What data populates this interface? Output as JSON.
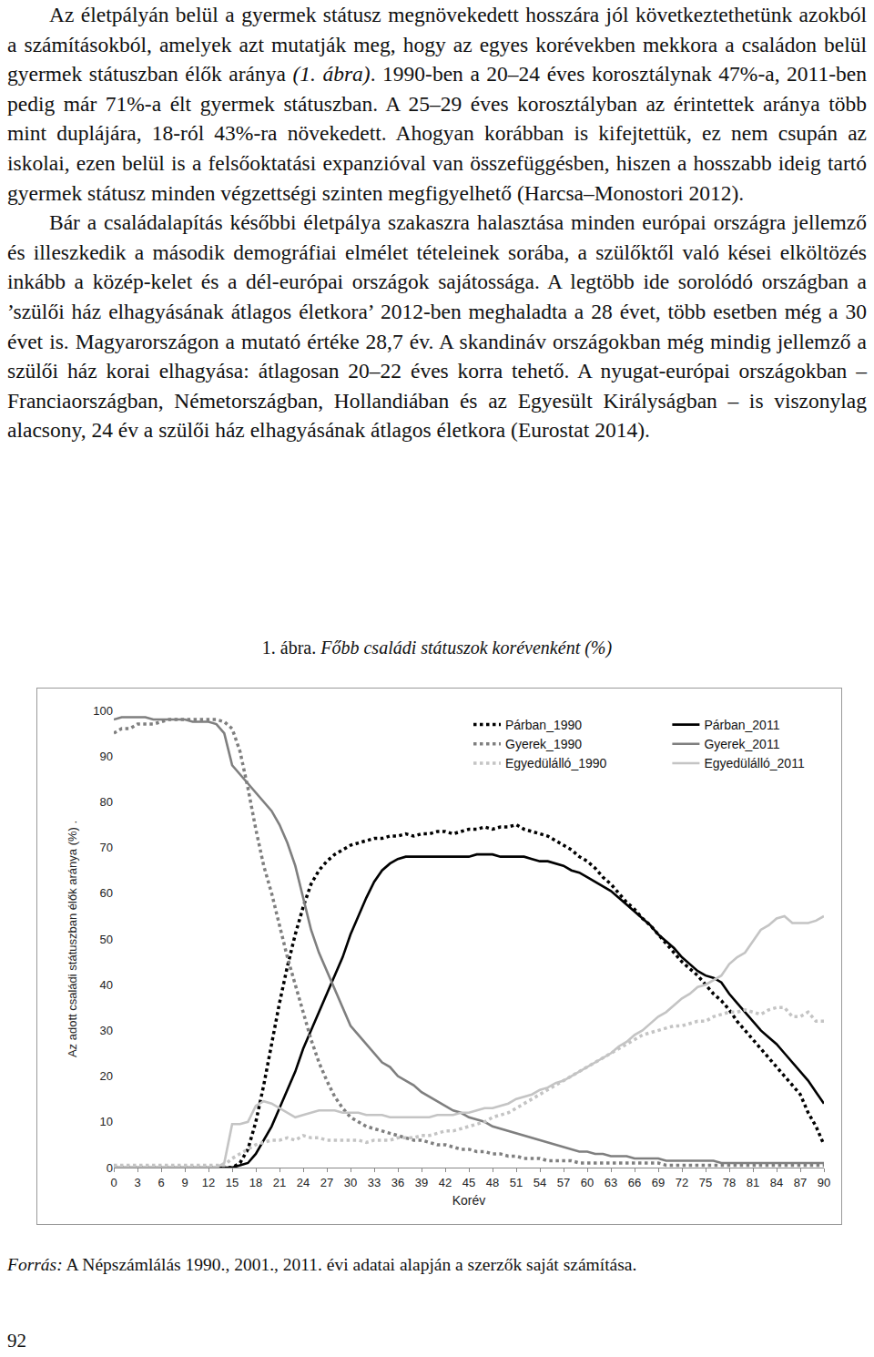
{
  "document": {
    "paragraphs": [
      [
        {
          "text": "Az életpályán belül a gyermek státusz megnövekedett hosszára jól következtethetünk azokból a számításokból, amelyek azt mutatják meg, hogy az egyes korévekben mekkora a családon belül gyermek státuszban élők aránya ",
          "italic": false
        },
        {
          "text": "(1. ábra)",
          "italic": true
        },
        {
          "text": ". 1990-ben a 20–24 éves korosztálynak 47%-a, 2011-ben pedig már 71%-a élt gyermek státuszban. A 25–29 éves korosztályban az érintettek aránya több mint duplájára, 18-ról 43%-ra növekedett. Ahogyan korábban is kifejtettük, ez nem csupán az iskolai, ezen belül is a felsőoktatási expanzióval van összefüggésben, hiszen a hosszabb ideig tartó gyermek státusz minden végzettségi szinten megfigyelhető (Harcsa–Monostori 2012).",
          "italic": false
        }
      ],
      [
        {
          "text": "Bár a családalapítás későbbi életpálya szakaszra halasztása minden európai országra jellemző és illeszkedik a második demográfiai elmélet tételeinek sorába, a szülőktől való kései elköltözés inkább a közép-kelet és a dél-európai országok sajátossága. A legtöbb ide sorolódó országban a ’szülői ház elhagyásának átlagos életkora’ 2012-ben meghaladta a 28 évet, több esetben még a 30 évet is. Magyarországon a mutató értéke 28,7 év. A skandináv országokban még mindig jellemző a szülői ház korai elhagyása: átlagosan 20–22 éves korra tehető. A nyugat-európai országokban – Franciaországban, Németországban, Hollandiában és az Egyesült Királyságban – is viszonylag alacsony, 24 év a szülői ház elhagyásának átlagos életkora (Eurostat 2014).",
          "italic": false
        }
      ]
    ],
    "figure_caption": [
      {
        "text": "1. ábra. ",
        "italic": false
      },
      {
        "text": "Főbb családi státuszok korévenként (%)",
        "italic": true
      }
    ],
    "source": [
      {
        "text": "Forrás:",
        "italic": true
      },
      {
        "text": " A Népszámlálás 1990., 2001., 2011. évi adatai alapján a szerzők saját számítása.",
        "italic": false
      }
    ],
    "page_number": "92"
  },
  "chart_data": {
    "type": "line",
    "xlabel": "Korév",
    "ylabel": "Az adott családi státuszban élők aránya (%) .",
    "x": [
      0,
      1,
      2,
      3,
      4,
      5,
      6,
      7,
      8,
      9,
      10,
      11,
      12,
      13,
      14,
      15,
      16,
      17,
      18,
      19,
      20,
      21,
      22,
      23,
      24,
      25,
      26,
      27,
      28,
      29,
      30,
      31,
      32,
      33,
      34,
      35,
      36,
      37,
      38,
      39,
      40,
      41,
      42,
      43,
      44,
      45,
      46,
      47,
      48,
      49,
      50,
      51,
      52,
      53,
      54,
      55,
      56,
      57,
      58,
      59,
      60,
      61,
      62,
      63,
      64,
      65,
      66,
      67,
      68,
      69,
      70,
      71,
      72,
      73,
      74,
      75,
      76,
      77,
      78,
      79,
      80,
      81,
      82,
      83,
      84,
      85,
      86,
      87,
      88,
      89,
      90
    ],
    "xlim": [
      0,
      90
    ],
    "xticks": [
      0,
      3,
      6,
      9,
      12,
      15,
      18,
      21,
      24,
      27,
      30,
      33,
      36,
      39,
      42,
      45,
      48,
      51,
      54,
      57,
      60,
      63,
      66,
      69,
      72,
      75,
      78,
      81,
      84,
      87,
      90
    ],
    "ylim": [
      0,
      100
    ],
    "yticks": [
      0,
      10,
      20,
      30,
      40,
      50,
      60,
      70,
      80,
      90,
      100
    ],
    "grid": false,
    "legend": "upper right",
    "series": [
      {
        "name": "Párban_1990",
        "color": "#000000",
        "line_style": "dot",
        "values": [
          0,
          0,
          0,
          0,
          0,
          0,
          0,
          0,
          0,
          0,
          0,
          0,
          0,
          0,
          0,
          0,
          1,
          4,
          10,
          18,
          27,
          36,
          44,
          51,
          57,
          62,
          65,
          67,
          68.5,
          69.5,
          70.5,
          71,
          71.5,
          72,
          72,
          72.5,
          72.5,
          73,
          72.5,
          73,
          73,
          73.5,
          73.5,
          73,
          73.5,
          74,
          74,
          74.5,
          74,
          74.5,
          74.5,
          75,
          74,
          73.5,
          73,
          72.5,
          71.5,
          70.5,
          69.5,
          68,
          67,
          65.5,
          63.5,
          62,
          60,
          58,
          56.5,
          54.5,
          53,
          51,
          49,
          47,
          45,
          43.5,
          42,
          40,
          38,
          36.5,
          34.5,
          32,
          30,
          28,
          26,
          24,
          22,
          20,
          18,
          16,
          12,
          9,
          5
        ]
      },
      {
        "name": "Párban_2011",
        "color": "#000000",
        "line_style": "solid",
        "values": [
          0,
          0,
          0,
          0,
          0,
          0,
          0,
          0,
          0,
          0,
          0,
          0,
          0,
          0,
          0,
          0,
          0.5,
          1,
          3,
          6,
          9,
          13,
          17,
          21,
          26,
          30,
          34,
          38,
          42,
          46,
          51,
          55,
          59,
          62.5,
          65,
          66.5,
          67.5,
          68,
          68,
          68,
          68,
          68,
          68,
          68,
          68,
          68,
          68.5,
          68.5,
          68.5,
          68,
          68,
          68,
          68,
          67.5,
          67,
          67,
          66.5,
          66,
          65,
          64.5,
          63.5,
          62.5,
          61.5,
          60.5,
          59,
          57.5,
          56,
          54.5,
          53,
          51,
          49.5,
          48,
          46,
          44.5,
          43,
          42,
          41.5,
          40.5,
          38,
          36,
          34,
          32,
          30,
          28.5,
          27,
          25,
          23,
          21,
          19,
          16.5,
          14
        ]
      },
      {
        "name": "Gyerek_1990",
        "color": "#7f7f7f",
        "line_style": "dot",
        "values": [
          95,
          96,
          96,
          97,
          97,
          97,
          97.5,
          98,
          98,
          98,
          98,
          98,
          98,
          98,
          97.5,
          96,
          91,
          83,
          74,
          66,
          60,
          53,
          46,
          40,
          34,
          28,
          23,
          19,
          15.5,
          13,
          11,
          10,
          9,
          8.5,
          8,
          7.5,
          7,
          6.5,
          6,
          6,
          5.5,
          5,
          5,
          4.5,
          4,
          4,
          3.5,
          3.5,
          3,
          3,
          2.5,
          2.5,
          2,
          2,
          2,
          1.5,
          1.5,
          1.5,
          1.5,
          1,
          1,
          1,
          1,
          1,
          1,
          1,
          1,
          1,
          1,
          1,
          0.5,
          0.5,
          0.5,
          0.5,
          0.5,
          0.5,
          0.5,
          0.5,
          0.5,
          0.5,
          0.5,
          0.5,
          0.5,
          0.5,
          0.5,
          0.5,
          0.5,
          0.5,
          0.5,
          0.5,
          0.5
        ]
      },
      {
        "name": "Gyerek_2011",
        "color": "#7f7f7f",
        "line_style": "solid",
        "values": [
          98,
          98.5,
          98.5,
          98.5,
          98.5,
          98,
          98,
          98,
          98,
          98,
          97.5,
          97.5,
          97.5,
          97,
          95,
          88,
          86,
          84,
          82,
          80,
          78,
          75,
          71,
          66,
          59,
          52,
          47,
          43,
          39,
          35,
          31,
          29,
          27,
          25,
          23,
          22,
          20,
          19,
          18,
          16.5,
          15.5,
          14.5,
          13.5,
          12.5,
          12,
          11,
          10.5,
          10,
          9,
          8.5,
          8,
          7.5,
          7,
          6.5,
          6,
          5.5,
          5,
          4.5,
          4,
          3.5,
          3.5,
          3,
          3,
          2.5,
          2.5,
          2.5,
          2,
          2,
          2,
          2,
          1.5,
          1.5,
          1.5,
          1.5,
          1.5,
          1.5,
          1.5,
          1,
          1,
          1,
          1,
          1,
          1,
          1,
          1,
          1,
          1,
          1,
          1,
          1,
          1
        ]
      },
      {
        "name": "Egyedülálló_1990",
        "color": "#c4c4c4",
        "line_style": "dot",
        "values": [
          0.5,
          0.5,
          0.5,
          0.5,
          0.5,
          0.5,
          0.5,
          0.5,
          0.5,
          0.5,
          0.5,
          0.5,
          0.5,
          0.5,
          0.5,
          2,
          3,
          4,
          5,
          5.5,
          6,
          6,
          6.5,
          6,
          7,
          6.5,
          6.5,
          6,
          6,
          6,
          6,
          6,
          5.5,
          6,
          6,
          6,
          6.5,
          6.5,
          6.5,
          7,
          7,
          7.5,
          8,
          8,
          8.5,
          9,
          9.5,
          10,
          11,
          11.5,
          12,
          13,
          14,
          15,
          16,
          17,
          18,
          19,
          20,
          21,
          22,
          23,
          24,
          25,
          26,
          27,
          28,
          29,
          29.5,
          30,
          30.5,
          31,
          31,
          31.5,
          32,
          32,
          33,
          33.5,
          34,
          34,
          34.5,
          34,
          33.5,
          34.5,
          35,
          35,
          33,
          33,
          34,
          32,
          32
        ]
      },
      {
        "name": "Egyedülálló_2011",
        "color": "#c4c4c4",
        "line_style": "solid",
        "values": [
          0,
          0,
          0,
          0,
          0,
          0,
          0,
          0,
          0,
          0,
          0,
          0,
          0,
          0,
          1,
          9.5,
          9.5,
          10,
          13.5,
          14.5,
          14,
          13,
          12,
          11,
          11.5,
          12,
          12.5,
          12.5,
          12.5,
          12,
          12,
          12,
          11.5,
          11.5,
          11.5,
          11,
          11,
          11,
          11,
          11,
          11,
          11.5,
          11.5,
          11.5,
          12,
          12,
          12.5,
          13,
          13,
          13.5,
          14,
          15,
          15.5,
          16,
          17,
          17.5,
          18.5,
          19,
          20,
          21,
          22,
          23,
          24,
          25,
          26.5,
          27.5,
          29,
          30,
          31.5,
          33,
          34,
          35.5,
          37,
          38,
          39.5,
          40,
          41,
          42,
          44.5,
          46,
          47,
          49.5,
          52,
          53,
          54.5,
          55,
          53.5,
          53.5,
          53.5,
          54,
          55
        ]
      }
    ]
  }
}
